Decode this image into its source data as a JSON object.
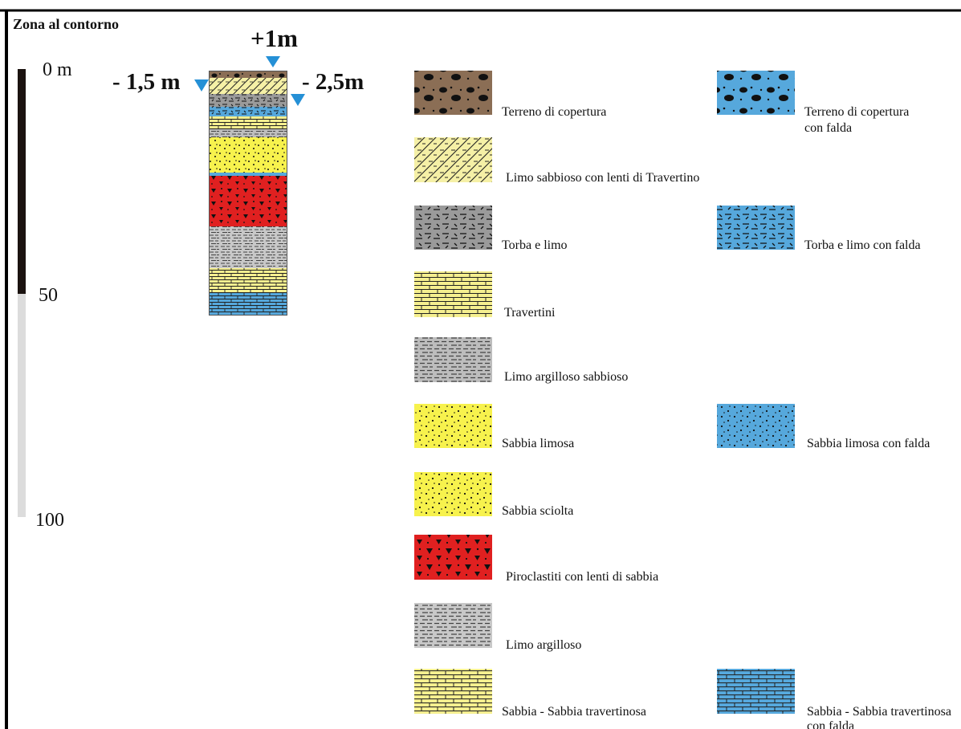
{
  "title": "Zona al contorno",
  "scale": {
    "labels": [
      "0 m",
      "50",
      "100"
    ]
  },
  "water_levels": {
    "top": "+1m",
    "left": "- 1,5 m",
    "right": "- 2,5m"
  },
  "colors": {
    "terreno": "#8b6e55",
    "limo_sabbioso": "#f5f0a6",
    "torba": "#9a9a9a",
    "travertini": "#f5ef8f",
    "limo_arg_sabb": "#bdbdbd",
    "sabbia": "#f7f24d",
    "piroclastiti": "#e02020",
    "limo_argilloso": "#c8c8c8",
    "falda": "#56a8dc",
    "marker": "#2590d6"
  },
  "legend": {
    "terreno": "Terreno  di copertura",
    "terreno_falda": [
      "Terreno  di copertura",
      "con falda"
    ],
    "limo_sabbioso": "Limo sabbioso con lenti di  Travertino",
    "torba": "Torba e limo",
    "torba_falda": "Torba e limo con falda",
    "travertini": "Travertini",
    "limo_arg_sabb": "Limo argilloso sabbioso",
    "sabbia_limosa": "Sabbia  limosa",
    "sabbia_limosa_falda": "Sabbia  limosa con falda",
    "sabbia_sciolta": "Sabbia sciolta",
    "piroclastiti": "Piroclastiti  con lenti di  sabbia",
    "limo_argilloso": "Limo argilloso",
    "sabbia_trav": "Sabbia - Sabbia travertinosa",
    "sabbia_trav_falda": [
      "Sabbia - Sabbia travertinosa",
      "con falda"
    ]
  }
}
